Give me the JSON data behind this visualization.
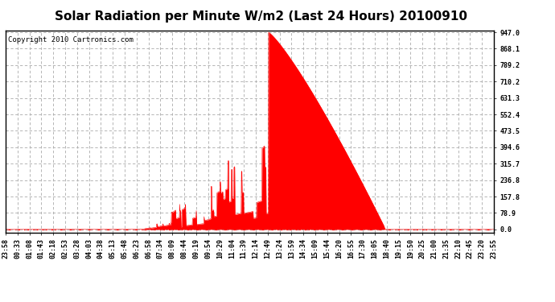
{
  "title": "Solar Radiation per Minute W/m2 (Last 24 Hours) 20100910",
  "copyright_text": "Copyright 2010 Cartronics.com",
  "y_ticks": [
    0.0,
    78.9,
    157.8,
    236.8,
    315.7,
    394.6,
    473.5,
    552.4,
    631.3,
    710.2,
    789.2,
    868.1,
    947.0
  ],
  "y_max": 947.0,
  "y_min": 0.0,
  "bar_color": "#ff0000",
  "fill_color": "#ff0000",
  "background_color": "#ffffff",
  "plot_bg_color": "#ffffff",
  "grid_color": "#aaaaaa",
  "dashed_line_color": "#ff0000",
  "title_fontsize": 11,
  "copyright_fontsize": 6.5,
  "tick_fontsize": 6,
  "num_points": 1440,
  "sunrise_idx": 385,
  "sunset_idx": 1120,
  "peak_idx": 775,
  "peak_val": 947.0,
  "x_tick_labels": [
    "23:58",
    "00:33",
    "01:08",
    "01:43",
    "02:18",
    "02:53",
    "03:28",
    "04:03",
    "04:38",
    "05:13",
    "05:48",
    "06:23",
    "06:58",
    "07:34",
    "08:09",
    "08:44",
    "09:19",
    "09:54",
    "10:29",
    "11:04",
    "11:39",
    "12:14",
    "12:49",
    "13:24",
    "13:59",
    "14:34",
    "15:09",
    "15:44",
    "16:20",
    "16:55",
    "17:30",
    "18:05",
    "18:40",
    "19:15",
    "19:50",
    "20:25",
    "21:00",
    "21:35",
    "22:10",
    "22:45",
    "23:20",
    "23:55"
  ]
}
